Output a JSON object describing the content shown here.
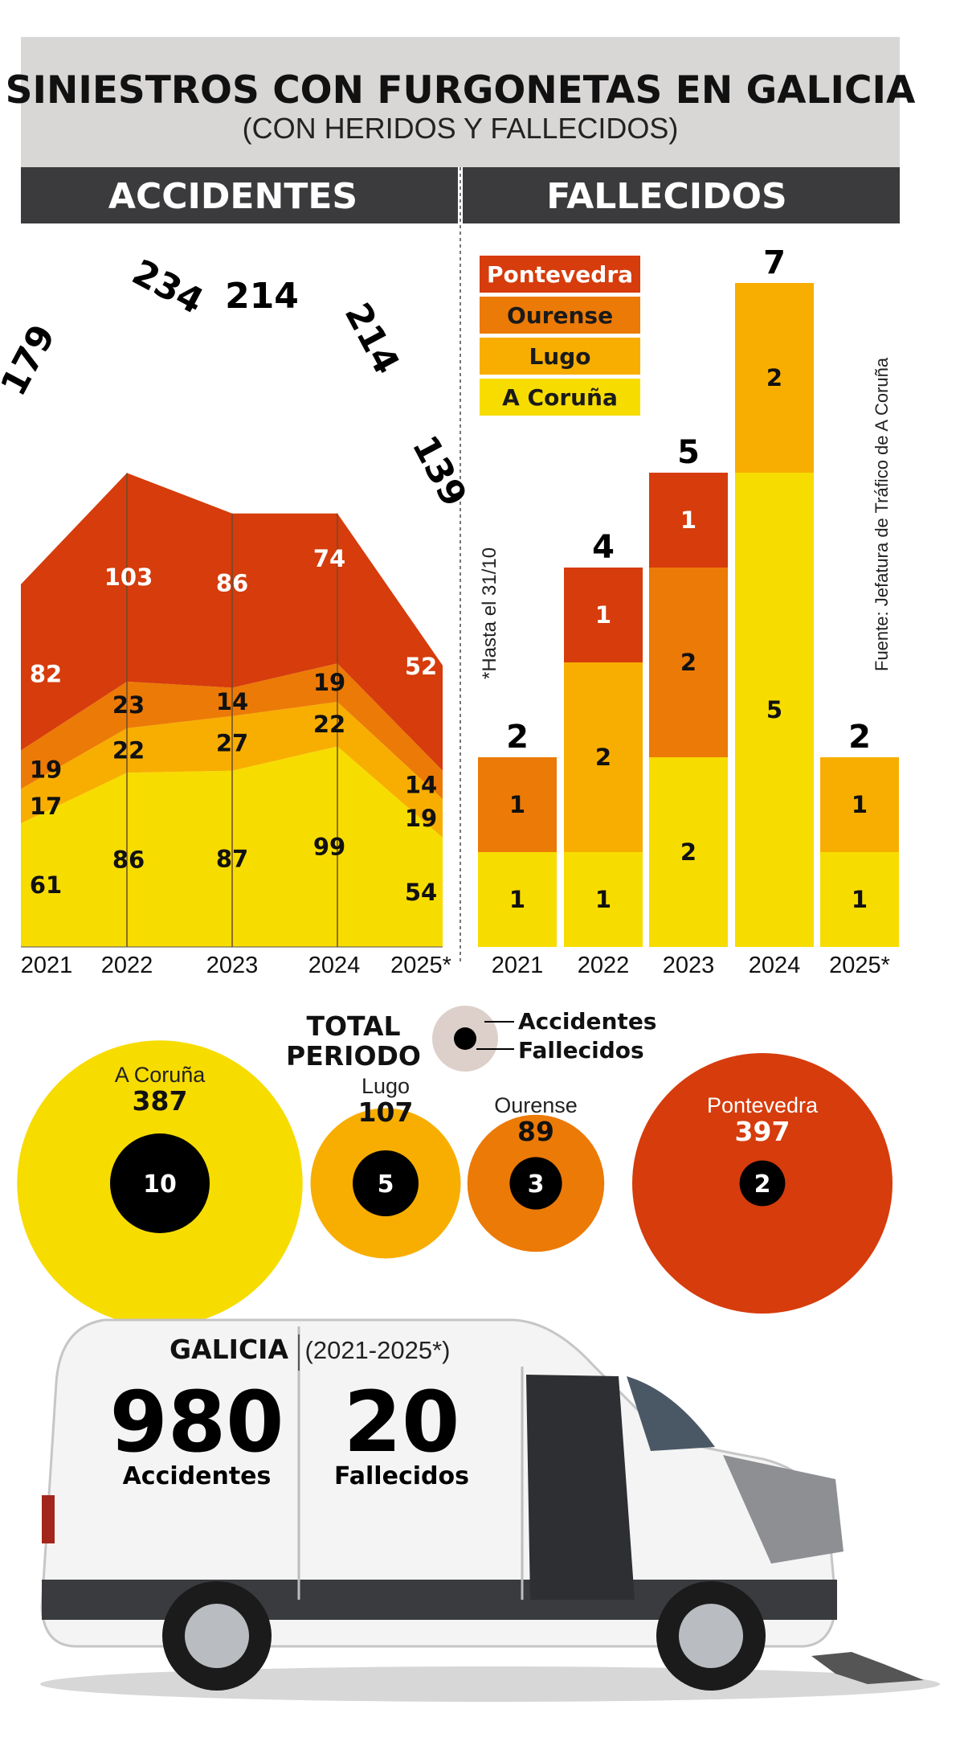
{
  "header": {
    "title": "SINIESTROS CON FURGONETAS EN GALICIA",
    "subtitle": "(CON HERIDOS Y FALLECIDOS)",
    "left_section": "ACCIDENTES",
    "right_section": "FALLECIDOS"
  },
  "notes": {
    "footnote": "*Hasta el 31/10",
    "source": "Fuente: Jefatura de Tráfico de A Coruña"
  },
  "colors": {
    "pontevedra": "#d63c0c",
    "ourense": "#ec7a06",
    "lugo": "#f8ae00",
    "a_coruna": "#f7dc00",
    "header_bar": "#3b3b3d",
    "title_bg": "#d9d7d6"
  },
  "chart_data": [
    {
      "type": "area",
      "title": "ACCIDENTES",
      "categories": [
        "2021",
        "2022",
        "2023",
        "2024",
        "2025*"
      ],
      "stacking": "stacked",
      "series": [
        {
          "name": "A Coruña",
          "values": [
            61,
            86,
            87,
            99,
            54
          ]
        },
        {
          "name": "Lugo",
          "values": [
            17,
            22,
            27,
            22,
            19
          ]
        },
        {
          "name": "Ourense",
          "values": [
            19,
            23,
            14,
            19,
            14
          ]
        },
        {
          "name": "Pontevedra",
          "values": [
            82,
            103,
            86,
            74,
            52
          ]
        }
      ],
      "totals": [
        179,
        234,
        214,
        214,
        139
      ],
      "ylim": [
        0,
        234
      ]
    },
    {
      "type": "bar",
      "title": "FALLECIDOS",
      "categories": [
        "2021",
        "2022",
        "2023",
        "2024",
        "2025*"
      ],
      "stacking": "stacked",
      "series": [
        {
          "name": "A Coruña",
          "values": [
            1,
            1,
            2,
            5,
            1
          ]
        },
        {
          "name": "Lugo",
          "values": [
            0,
            2,
            0,
            2,
            1
          ]
        },
        {
          "name": "Ourense",
          "values": [
            1,
            0,
            2,
            0,
            0
          ]
        },
        {
          "name": "Pontevedra",
          "values": [
            0,
            1,
            1,
            0,
            0
          ]
        }
      ],
      "totals": [
        2,
        4,
        5,
        7,
        2
      ],
      "legend": [
        "Pontevedra",
        "Ourense",
        "Lugo",
        "A Coruña"
      ],
      "ylim": [
        0,
        7
      ]
    },
    {
      "type": "bubble",
      "title": "TOTAL PERIODO",
      "legend": {
        "outer": "Accidentes",
        "inner": "Fallecidos"
      },
      "items": [
        {
          "name": "A Coruña",
          "accidentes": 387,
          "fallecidos": 10
        },
        {
          "name": "Lugo",
          "accidentes": 107,
          "fallecidos": 5
        },
        {
          "name": "Ourense",
          "accidentes": 89,
          "fallecidos": 3
        },
        {
          "name": "Pontevedra",
          "accidentes": 397,
          "fallecidos": 2
        }
      ]
    }
  ],
  "summary": {
    "region": "GALICIA",
    "period": "(2021-2025*)",
    "accidentes_value": "980",
    "accidentes_label": "Accidentes",
    "fallecidos_value": "20",
    "fallecidos_label": "Fallecidos"
  }
}
